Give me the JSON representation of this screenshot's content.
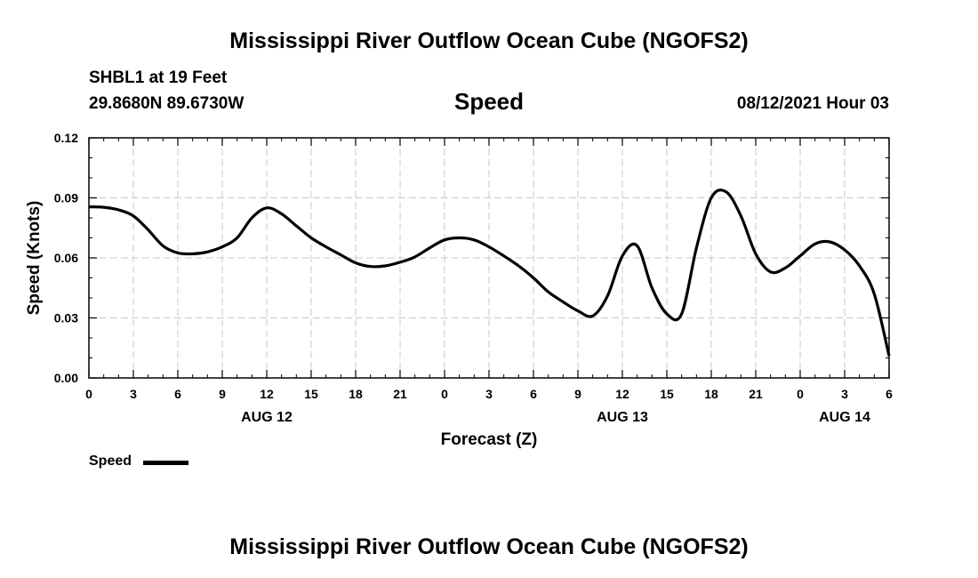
{
  "header": {
    "title": "Mississippi River Outflow Ocean Cube (NGOFS2)",
    "station": "SHBL1 at 19 Feet",
    "coords": "29.8680N  89.6730W",
    "variable": "Speed",
    "timestamp": "08/12/2021 Hour 03"
  },
  "footer": {
    "title": "Mississippi River Outflow Ocean Cube (NGOFS2)"
  },
  "legend": {
    "label": "Speed"
  },
  "chart_data": {
    "type": "line",
    "xlabel": "Forecast (Z)",
    "ylabel": "Speed (Knots)",
    "xlim": [
      0,
      54
    ],
    "ylim": [
      0,
      0.12
    ],
    "grid": true,
    "legend_position": "bottom-left",
    "x_ticks": [
      0,
      3,
      6,
      9,
      12,
      15,
      18,
      21,
      24,
      27,
      30,
      33,
      36,
      39,
      42,
      45,
      48,
      51,
      54
    ],
    "x_tick_labels": [
      "0",
      "3",
      "6",
      "9",
      "12",
      "15",
      "18",
      "21",
      "0",
      "3",
      "6",
      "9",
      "12",
      "15",
      "18",
      "21",
      "0",
      "3",
      "6"
    ],
    "y_ticks": [
      0,
      0.03,
      0.06,
      0.09,
      0.12
    ],
    "y_tick_labels": [
      "0.00",
      "0.03",
      "0.06",
      "0.09",
      "0.12"
    ],
    "date_labels": [
      {
        "x": 12,
        "label": "AUG 12"
      },
      {
        "x": 36,
        "label": "AUG 13"
      },
      {
        "x": 51,
        "label": "AUG 14"
      }
    ],
    "series": [
      {
        "name": "Speed",
        "x": [
          0,
          1,
          2,
          3,
          4,
          5,
          6,
          7,
          8,
          9,
          10,
          11,
          12,
          13,
          14,
          15,
          16,
          17,
          18,
          19,
          20,
          21,
          22,
          23,
          24,
          25,
          26,
          27,
          28,
          29,
          30,
          31,
          32,
          33,
          34,
          35,
          36,
          37,
          38,
          39,
          40,
          41,
          42,
          43,
          44,
          45,
          46,
          47,
          48,
          49,
          50,
          51,
          52,
          53,
          54
        ],
        "values": [
          0.0855,
          0.0853,
          0.084,
          0.081,
          0.074,
          0.066,
          0.0625,
          0.062,
          0.063,
          0.0655,
          0.07,
          0.08,
          0.085,
          0.082,
          0.076,
          0.07,
          0.0655,
          0.0615,
          0.0575,
          0.0557,
          0.056,
          0.0578,
          0.0605,
          0.065,
          0.069,
          0.07,
          0.069,
          0.0655,
          0.061,
          0.056,
          0.05,
          0.043,
          0.038,
          0.0335,
          0.031,
          0.041,
          0.061,
          0.066,
          0.045,
          0.032,
          0.032,
          0.065,
          0.09,
          0.093,
          0.081,
          0.062,
          0.053,
          0.055,
          0.061,
          0.067,
          0.068,
          0.064,
          0.056,
          0.042,
          0.011
        ]
      }
    ]
  }
}
